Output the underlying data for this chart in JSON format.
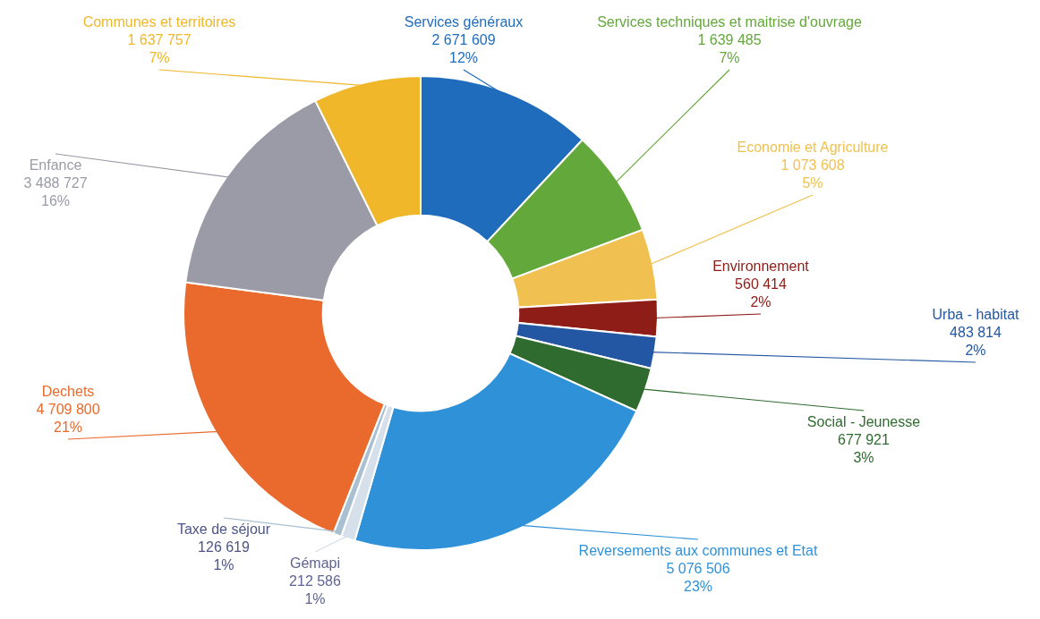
{
  "chart_data": {
    "type": "donut",
    "categories": [
      "Services généraux",
      "Services techniques et maitrise d'ouvrage",
      "Economie et Agriculture",
      "Environnement",
      "Urba - habitat",
      "Social - Jeunesse",
      "Reversements aux communes et Etat",
      "Gémapi",
      "Taxe de séjour",
      "Dechets",
      "Enfance",
      "Communes et territoires"
    ],
    "values": [
      2671609,
      1639485,
      1073608,
      560414,
      483814,
      677921,
      5076506,
      212586,
      126619,
      4709800,
      3488727,
      1637757
    ],
    "value_labels": [
      "2 671 609\n12%",
      "1 639 485\n7%",
      "1 073 608\n5%",
      "560 414\n2%",
      "483 814\n2%",
      "677 921\n3%",
      "5 076 506\n23%",
      "212 586\n1%",
      "126 619\n1%",
      "4 709 800\n21%",
      "3 488 727\n16%",
      "1 637 757\n7%"
    ],
    "colors": [
      "#1f6cbd",
      "#63a83a",
      "#f0c150",
      "#8e1c17",
      "#2457a3",
      "#2f6b2e",
      "#2f91d8",
      "#d5e0ea",
      "#a9bfd2",
      "#e96a2c",
      "#9b9ba8",
      "#f0b72a"
    ]
  }
}
